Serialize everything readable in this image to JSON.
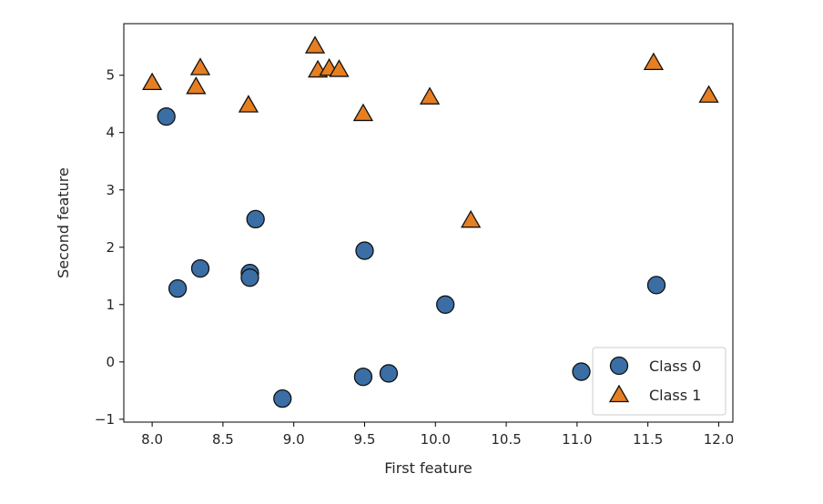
{
  "chart_data": {
    "type": "scatter",
    "title": "",
    "xlabel": "First feature",
    "ylabel": "Second feature",
    "xlim": [
      7.8,
      12.1
    ],
    "ylim": [
      -1.05,
      5.9
    ],
    "xticks": [
      8.0,
      8.5,
      9.0,
      9.5,
      10.0,
      10.5,
      11.0,
      11.5,
      12.0
    ],
    "xtick_labels": [
      "8.0",
      "8.5",
      "9.0",
      "9.5",
      "10.0",
      "10.5",
      "11.0",
      "11.5",
      "12.0"
    ],
    "yticks": [
      -1,
      0,
      1,
      2,
      3,
      4,
      5
    ],
    "ytick_labels": [
      "−1",
      "0",
      "1",
      "2",
      "3",
      "4",
      "5"
    ],
    "grid": false,
    "legend_position": "lower-right",
    "series": [
      {
        "name": "Class 0",
        "marker": "circle",
        "color": "#3a6ea5",
        "edge_color": "#111111",
        "points": [
          {
            "x": 8.1,
            "y": 4.28
          },
          {
            "x": 8.18,
            "y": 1.28
          },
          {
            "x": 8.34,
            "y": 1.63
          },
          {
            "x": 8.69,
            "y": 1.55
          },
          {
            "x": 8.69,
            "y": 1.47
          },
          {
            "x": 8.73,
            "y": 2.49
          },
          {
            "x": 8.92,
            "y": -0.64
          },
          {
            "x": 9.5,
            "y": 1.94
          },
          {
            "x": 9.49,
            "y": -0.26
          },
          {
            "x": 9.67,
            "y": -0.2
          },
          {
            "x": 10.07,
            "y": 1.0
          },
          {
            "x": 11.03,
            "y": -0.17
          },
          {
            "x": 11.56,
            "y": 1.34
          }
        ]
      },
      {
        "name": "Class 1",
        "marker": "triangle",
        "color": "#e67e22",
        "edge_color": "#111111",
        "points": [
          {
            "x": 8.0,
            "y": 4.87
          },
          {
            "x": 8.34,
            "y": 5.13
          },
          {
            "x": 8.31,
            "y": 4.8
          },
          {
            "x": 8.68,
            "y": 4.48
          },
          {
            "x": 9.15,
            "y": 5.51
          },
          {
            "x": 9.17,
            "y": 5.09
          },
          {
            "x": 9.25,
            "y": 5.12
          },
          {
            "x": 9.32,
            "y": 5.1
          },
          {
            "x": 9.49,
            "y": 4.33
          },
          {
            "x": 9.96,
            "y": 4.62
          },
          {
            "x": 10.25,
            "y": 2.47
          },
          {
            "x": 11.54,
            "y": 5.22
          },
          {
            "x": 11.93,
            "y": 4.65
          }
        ]
      }
    ]
  }
}
